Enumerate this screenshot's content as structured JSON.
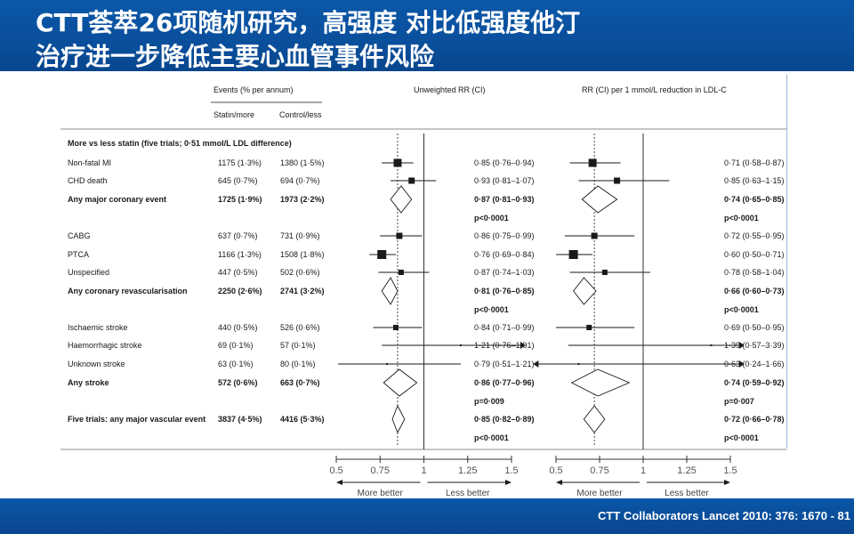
{
  "header": {
    "title_line1": "CTT荟萃26项随机研究，高强度 对比低强度他汀",
    "title_line2": "治疗进一步降低主要心血管事件风险"
  },
  "footer": {
    "citation": "CTT Collaborators Lancet 2010: 376: 1670 - 81"
  },
  "colors": {
    "bar": "#0a4f9c",
    "ink": "#1a1a1a",
    "axis": "#333333",
    "better_label": "#444444"
  },
  "chart_data": {
    "type": "forest",
    "column_headers": {
      "events": "Events (% per annum)",
      "statin_more": "Statin/more",
      "control_less": "Control/less",
      "unweighted": "Unweighted RR (CI)",
      "per_mmol": "RR (CI) per 1 mmol/L reduction in LDL-C"
    },
    "section_header": "More vs less statin (five trials; 0·51 mmol/L LDL difference)",
    "rows": [
      {
        "label": "Non-fatal MI",
        "bold": false,
        "statin": "1175 (1·3%)",
        "control": "1380 (1·5%)",
        "rr_text": "0·85 (0·76–0·94)",
        "rr": 0.85,
        "lo": 0.76,
        "hi": 0.94,
        "rr2_text": "0·71 (0·58–0·87)",
        "rr2": 0.71,
        "lo2": 0.58,
        "hi2": 0.87,
        "shape": "square",
        "size": 9
      },
      {
        "label": "CHD death",
        "bold": false,
        "statin": "645 (0·7%)",
        "control": "694 (0·7%)",
        "rr_text": "0·93 (0·81–1·07)",
        "rr": 0.93,
        "lo": 0.81,
        "hi": 1.07,
        "rr2_text": "0·85 (0·63–1·15)",
        "rr2": 0.85,
        "lo2": 0.63,
        "hi2": 1.15,
        "shape": "square",
        "size": 7
      },
      {
        "label": "Any major coronary event",
        "bold": true,
        "statin": "1725 (1·9%)",
        "control": "1973 (2·2%)",
        "rr_text": "0·87 (0·81–0·93)",
        "rr": 0.87,
        "lo": 0.81,
        "hi": 0.93,
        "rr2_text": "0·74 (0·65–0·85)",
        "rr2": 0.74,
        "lo2": 0.65,
        "hi2": 0.85,
        "shape": "diamond",
        "p_text": "p<0·0001"
      },
      {
        "label": "CABG",
        "bold": false,
        "statin": "637 (0·7%)",
        "control": "731 (0·9%)",
        "rr_text": "0·86 (0·75–0·99)",
        "rr": 0.86,
        "lo": 0.75,
        "hi": 0.99,
        "rr2_text": "0·72 (0·55–0·95)",
        "rr2": 0.72,
        "lo2": 0.55,
        "hi2": 0.95,
        "shape": "square",
        "size": 7
      },
      {
        "label": "PTCA",
        "bold": false,
        "statin": "1166 (1·3%)",
        "control": "1508 (1·8%)",
        "rr_text": "0·76 (0·69–0·84)",
        "rr": 0.76,
        "lo": 0.69,
        "hi": 0.84,
        "rr2_text": "0·60 (0·50–0·71)",
        "rr2": 0.6,
        "lo2": 0.5,
        "hi2": 0.71,
        "shape": "square",
        "size": 10
      },
      {
        "label": "Unspecified",
        "bold": false,
        "statin": "447 (0·5%)",
        "control": "502 (0·6%)",
        "rr_text": "0·87 (0·74–1·03)",
        "rr": 0.87,
        "lo": 0.74,
        "hi": 1.03,
        "rr2_text": "0·78 (0·58–1·04)",
        "rr2": 0.78,
        "lo2": 0.58,
        "hi2": 1.04,
        "shape": "square",
        "size": 6
      },
      {
        "label": "Any coronary revascularisation",
        "bold": true,
        "statin": "2250 (2·6%)",
        "control": "2741 (3·2%)",
        "rr_text": "0·81 (0·76–0·85)",
        "rr": 0.81,
        "lo": 0.76,
        "hi": 0.85,
        "rr2_text": "0·66 (0·60–0·73)",
        "rr2": 0.66,
        "lo2": 0.6,
        "hi2": 0.73,
        "shape": "diamond",
        "p_text": "p<0·0001"
      },
      {
        "label": "Ischaemic stroke",
        "bold": false,
        "statin": "440 (0·5%)",
        "control": "526 (0·6%)",
        "rr_text": "0·84 (0·71–0·99)",
        "rr": 0.84,
        "lo": 0.71,
        "hi": 0.99,
        "rr2_text": "0·69 (0·50–0·95)",
        "rr2": 0.69,
        "lo2": 0.5,
        "hi2": 0.95,
        "shape": "square",
        "size": 6
      },
      {
        "label": "Haemorrhagic stroke",
        "bold": false,
        "statin": "69 (0·1%)",
        "control": "57 (0·1%)",
        "rr_text": "1·21 (0·76–1·91)",
        "rr": 1.21,
        "lo": 0.76,
        "hi": 1.91,
        "rr2_text": "1·39 (0·57–3·39)",
        "rr2": 1.39,
        "lo2": 0.57,
        "hi2": 3.39,
        "shape": "square",
        "size": 2
      },
      {
        "label": "Unknown stroke",
        "bold": false,
        "statin": "63 (0·1%)",
        "control": "80 (0·1%)",
        "rr_text": "0·79 (0·51–1·21)",
        "rr": 0.79,
        "lo": 0.51,
        "hi": 1.21,
        "rr2_text": "0·63 (0·24–1·66)",
        "rr2": 0.63,
        "lo2": 0.24,
        "hi2": 1.66,
        "shape": "square",
        "size": 2
      },
      {
        "label": "Any stroke",
        "bold": true,
        "statin": "572 (0·6%)",
        "control": "663 (0·7%)",
        "rr_text": "0·86 (0·77–0·96)",
        "rr": 0.86,
        "lo": 0.77,
        "hi": 0.96,
        "rr2_text": "0·74 (0·59–0·92)",
        "rr2": 0.74,
        "lo2": 0.59,
        "hi2": 0.92,
        "shape": "diamond",
        "p_text": "p=0·009",
        "p_text2": "p=0·007"
      },
      {
        "label": "Five trials: any major vascular event",
        "bold": true,
        "statin": "3837 (4·5%)",
        "control": "4416 (5·3%)",
        "rr_text": "0·85 (0·82–0·89)",
        "rr": 0.85,
        "lo": 0.82,
        "hi": 0.89,
        "rr2_text": "0·72 (0·66–0·78)",
        "rr2": 0.72,
        "lo2": 0.66,
        "hi2": 0.78,
        "shape": "diamond",
        "p_text": "p<0·0001"
      }
    ],
    "left_panel_dashed_ref": 0.85,
    "right_panel_dashed_ref": 0.72,
    "xticks": [
      0.5,
      0.75,
      1,
      1.25,
      1.5
    ],
    "xtick_labels": [
      "0.5",
      "0.75",
      "1",
      "1.25",
      "1.5"
    ],
    "xlim": [
      0.5,
      1.5
    ],
    "better_labels": {
      "left": "More better",
      "right": "Less better"
    }
  }
}
